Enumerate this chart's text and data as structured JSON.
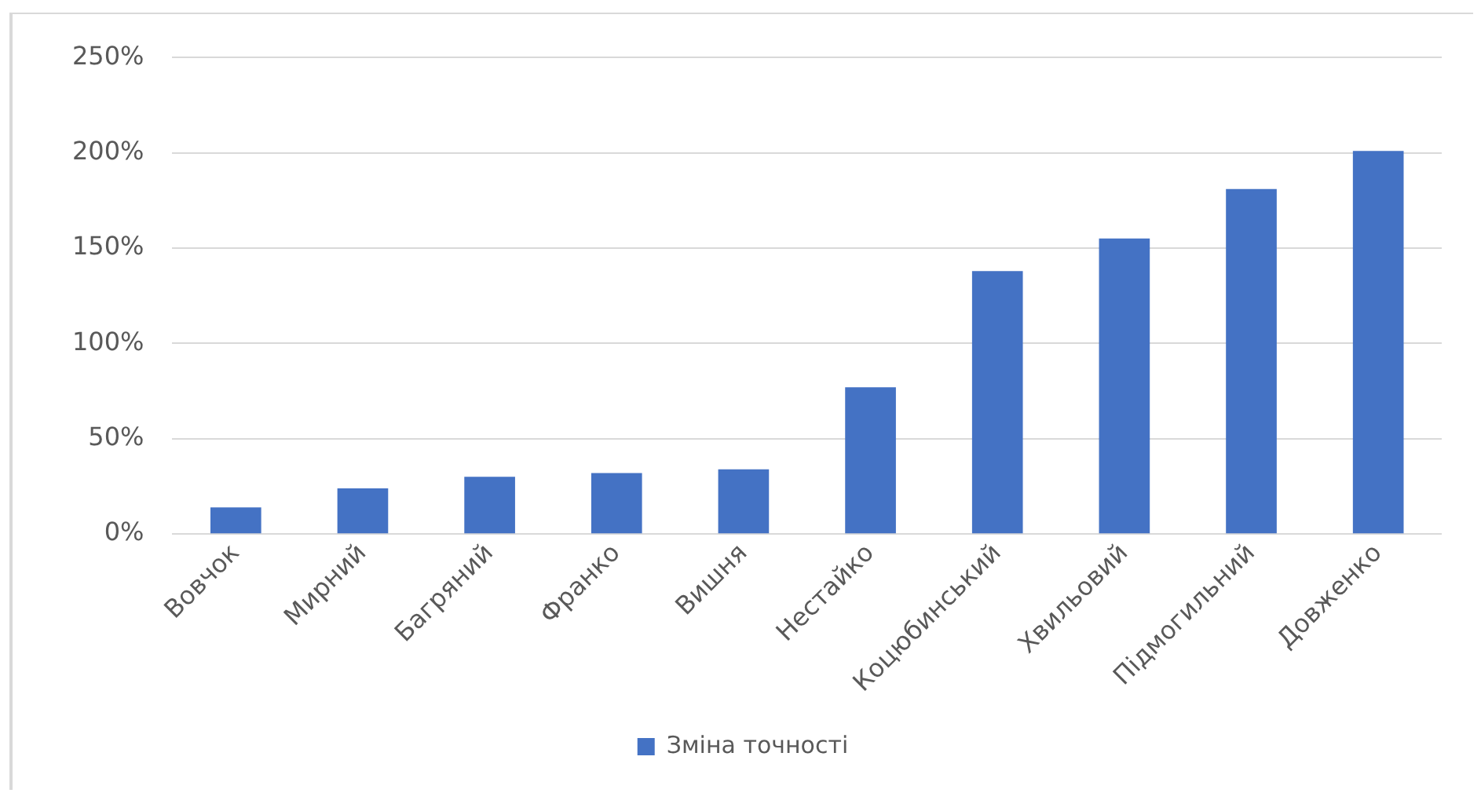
{
  "chart_data": {
    "type": "bar",
    "categories": [
      "Вовчок",
      "Мирний",
      "Багряний",
      "Франко",
      "Вишня",
      "Нестайко",
      "Коцюбинський",
      "Хвильовий",
      "Підмогильний",
      "Довженко"
    ],
    "series": [
      {
        "name": "Зміна точності",
        "color": "#4472c4",
        "values": [
          14,
          24,
          30,
          32,
          34,
          77,
          138,
          155,
          181,
          201
        ]
      }
    ],
    "ylim": [
      0,
      250
    ],
    "yticks": [
      {
        "value": 0,
        "label": "0%"
      },
      {
        "value": 50,
        "label": "50%"
      },
      {
        "value": 100,
        "label": "100%"
      },
      {
        "value": 150,
        "label": "150%"
      },
      {
        "value": 200,
        "label": "200%"
      },
      {
        "value": 250,
        "label": "250%"
      }
    ],
    "grid": "y",
    "legend": "bottom"
  }
}
